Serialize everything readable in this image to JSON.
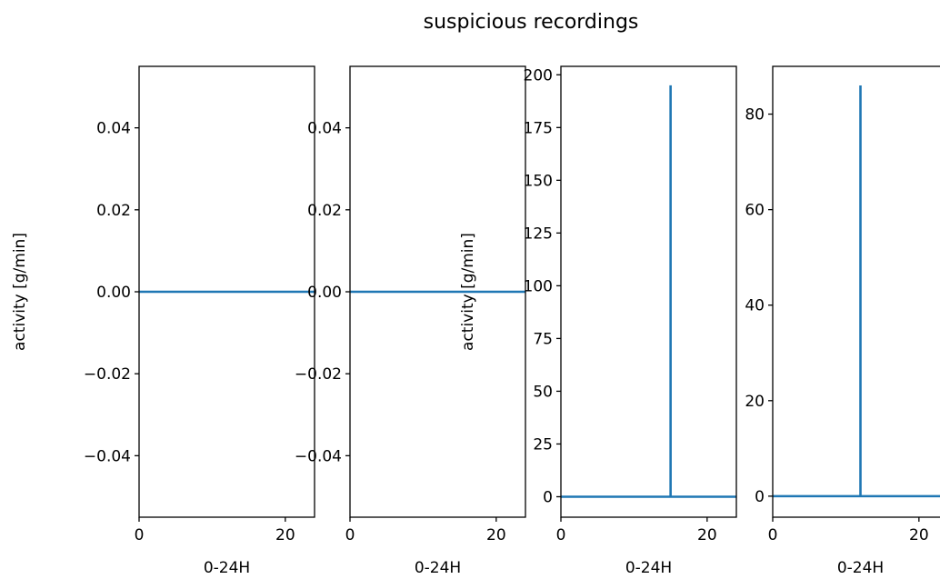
{
  "figure": {
    "suptitle": "suspicious recordings"
  },
  "colors": {
    "line": "#1f77b4"
  },
  "chart_data": [
    {
      "type": "line",
      "xlabel": "0-24H",
      "ylabel": "activity [g/min]",
      "xlim": [
        0,
        24
      ],
      "ylim": [
        -0.055,
        0.055
      ],
      "xticks": [
        0,
        20
      ],
      "yticks": [
        -0.04,
        -0.02,
        0.0,
        0.02,
        0.04
      ],
      "ytick_labels": [
        "−0.04",
        "−0.02",
        "0.00",
        "0.02",
        "0.04"
      ],
      "series": [
        {
          "x": [
            0,
            24
          ],
          "y": [
            0,
            0
          ]
        }
      ]
    },
    {
      "type": "line",
      "xlabel": "0-24H",
      "ylabel": "",
      "xlim": [
        0,
        24
      ],
      "ylim": [
        -0.055,
        0.055
      ],
      "xticks": [
        0,
        20
      ],
      "yticks": [
        -0.04,
        -0.02,
        0.0,
        0.02,
        0.04
      ],
      "ytick_labels": [
        "−0.04",
        "−0.02",
        "0.00",
        "0.02",
        "0.04"
      ],
      "series": [
        {
          "x": [
            0,
            24
          ],
          "y": [
            0,
            0
          ]
        }
      ]
    },
    {
      "type": "line",
      "xlabel": "0-24H",
      "ylabel": "activity [g/min]",
      "xlim": [
        0,
        24
      ],
      "ylim": [
        -9.7,
        204
      ],
      "xticks": [
        0,
        20
      ],
      "yticks": [
        0,
        25,
        50,
        75,
        100,
        125,
        150,
        175,
        200
      ],
      "ytick_labels": [
        "0",
        "25",
        "50",
        "75",
        "100",
        "125",
        "150",
        "175",
        "200"
      ],
      "series": [
        {
          "x": [
            0,
            15,
            15,
            15,
            15,
            24
          ],
          "y": [
            0,
            0,
            195,
            195,
            0,
            0
          ]
        }
      ]
    },
    {
      "type": "line",
      "xlabel": "0-24H",
      "ylabel": "",
      "xlim": [
        0,
        24
      ],
      "ylim": [
        -4.4,
        90
      ],
      "xticks": [
        0,
        20
      ],
      "yticks": [
        0,
        20,
        40,
        60,
        80
      ],
      "ytick_labels": [
        "0",
        "20",
        "40",
        "60",
        "80"
      ],
      "series": [
        {
          "x": [
            0,
            12,
            12,
            12,
            12,
            24
          ],
          "y": [
            0,
            0,
            86,
            86,
            0,
            0
          ]
        }
      ]
    }
  ]
}
